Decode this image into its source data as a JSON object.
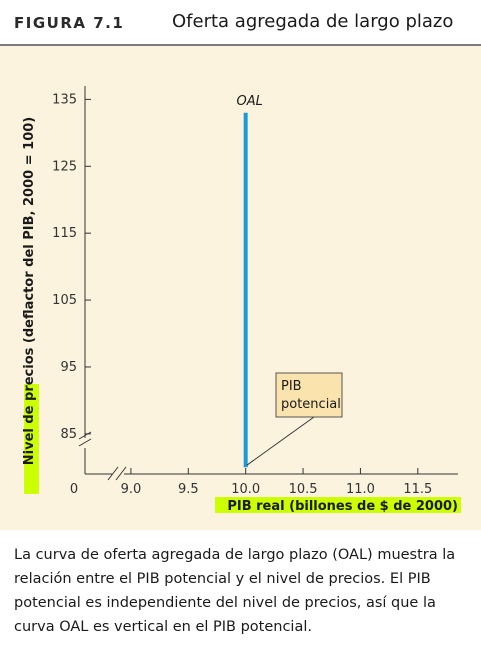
{
  "figure": {
    "label": "FIGURA 7.1",
    "title": "Oferta agregada de largo plazo"
  },
  "chart_data": {
    "type": "line",
    "title": "Oferta agregada de largo plazo",
    "xlabel": "PIB real (billones de $ de 2000)",
    "ylabel": "Nivel de precios (deflactor del PIB, 2000 = 100)",
    "x_ticks": [
      "9.0",
      "9.5",
      "10.0",
      "10.5",
      "11.0",
      "11.5"
    ],
    "x_tick_values": [
      9.0,
      9.5,
      10.0,
      10.5,
      11.0,
      11.5
    ],
    "y_ticks": [
      "85",
      "95",
      "105",
      "115",
      "125",
      "135"
    ],
    "y_tick_values": [
      85,
      95,
      105,
      115,
      125,
      135
    ],
    "origin_label": "0",
    "xlim": [
      8.6,
      11.85
    ],
    "ylim": [
      79,
      137
    ],
    "axis_breaks": true,
    "highlighted_axis_words": [
      "Nivel",
      "de",
      "precios",
      "PIB real (billones de $ de 2000)"
    ],
    "highlight_color": "#ccff00",
    "series": [
      {
        "name": "OAL",
        "color": "#1a9bd7",
        "x": [
          10.0,
          10.0
        ],
        "y": [
          80,
          133
        ]
      }
    ],
    "annotations": [
      {
        "text_lines": [
          "PIB",
          "potencial"
        ],
        "point": [
          10.0,
          80
        ],
        "box_color": "#fbe3ae"
      }
    ]
  },
  "caption": {
    "line1": "La curva de oferta agregada de largo plazo (OAL) muestra la",
    "line2": "relación entre el PIB potencial y el nivel de precios. El PIB",
    "line3": "potencial es independiente del nivel de precios, así que la",
    "line4": "curva OAL es vertical en el PIB potencial."
  }
}
